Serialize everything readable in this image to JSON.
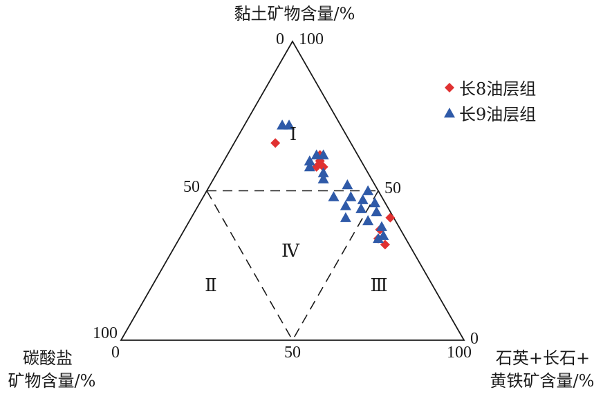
{
  "chart_data": {
    "type": "scatter",
    "subtype": "ternary",
    "axes": {
      "top": {
        "label": "黏土矿物含量/%"
      },
      "left": {
        "label_line1": "碳酸盐",
        "label_line2": "矿物含量/%"
      },
      "right": {
        "label_line1": "石英+长石+",
        "label_line2": "黄铁矿含量/%"
      }
    },
    "ticks": {
      "apex_top_left": "0",
      "apex_top_right": "100",
      "mid_left": "50",
      "mid_right": "50",
      "left_corner_top": "100",
      "left_corner_bottom": "0",
      "base_mid": "50",
      "right_corner_bottom": "100",
      "right_corner_top": "0"
    },
    "zones": [
      {
        "id": "I",
        "label": "Ⅰ"
      },
      {
        "id": "II",
        "label": "Ⅱ"
      },
      {
        "id": "III",
        "label": "Ⅲ"
      },
      {
        "id": "IV",
        "label": "Ⅳ"
      }
    ],
    "series": [
      {
        "name": "长8油层组",
        "marker": "diamond",
        "color": "#e03131",
        "points": [
          {
            "clay": 66,
            "carbonate": 22,
            "qfp": 12
          },
          {
            "clay": 62,
            "carbonate": 11,
            "qfp": 27
          },
          {
            "clay": 60,
            "carbonate": 12,
            "qfp": 28
          },
          {
            "clay": 58,
            "carbonate": 14,
            "qfp": 28
          },
          {
            "clay": 58,
            "carbonate": 12,
            "qfp": 30
          },
          {
            "clay": 41,
            "carbonate": 1,
            "qfp": 58
          },
          {
            "clay": 37,
            "carbonate": 6,
            "qfp": 57
          },
          {
            "clay": 34,
            "carbonate": 8,
            "qfp": 58
          },
          {
            "clay": 32,
            "carbonate": 7,
            "qfp": 61
          }
        ]
      },
      {
        "name": "长9油层组",
        "marker": "triangle",
        "color": "#2f5aa8",
        "points": [
          {
            "clay": 72,
            "carbonate": 17,
            "qfp": 11
          },
          {
            "clay": 72,
            "carbonate": 15,
            "qfp": 13
          },
          {
            "clay": 62,
            "carbonate": 12,
            "qfp": 26
          },
          {
            "clay": 62,
            "carbonate": 10,
            "qfp": 28
          },
          {
            "clay": 60,
            "carbonate": 15,
            "qfp": 25
          },
          {
            "clay": 58,
            "carbonate": 16,
            "qfp": 26
          },
          {
            "clay": 56,
            "carbonate": 13,
            "qfp": 31
          },
          {
            "clay": 54,
            "carbonate": 14,
            "qfp": 32
          },
          {
            "clay": 52,
            "carbonate": 8,
            "qfp": 40
          },
          {
            "clay": 50,
            "carbonate": 3,
            "qfp": 47
          },
          {
            "clay": 48,
            "carbonate": 14,
            "qfp": 38
          },
          {
            "clay": 48,
            "carbonate": 9,
            "qfp": 43
          },
          {
            "clay": 47,
            "carbonate": 6,
            "qfp": 47
          },
          {
            "clay": 46,
            "carbonate": 3,
            "qfp": 51
          },
          {
            "clay": 45,
            "carbonate": 12,
            "qfp": 43
          },
          {
            "clay": 44,
            "carbonate": 8,
            "qfp": 48
          },
          {
            "clay": 43,
            "carbonate": 4,
            "qfp": 53
          },
          {
            "clay": 41,
            "carbonate": 14,
            "qfp": 45
          },
          {
            "clay": 40,
            "carbonate": 8,
            "qfp": 52
          },
          {
            "clay": 38,
            "carbonate": 5,
            "qfp": 57
          },
          {
            "clay": 35,
            "carbonate": 6,
            "qfp": 59
          },
          {
            "clay": 34,
            "carbonate": 8,
            "qfp": 58
          }
        ]
      }
    ],
    "legend": {
      "placement": "top-right"
    },
    "grid": false
  }
}
